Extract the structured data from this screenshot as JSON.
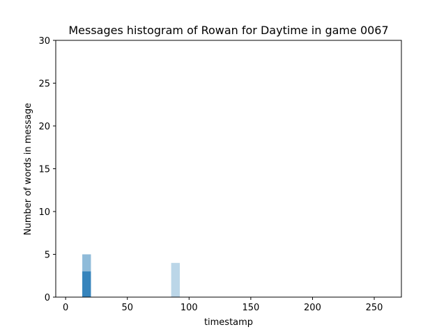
{
  "chart_data": {
    "type": "bar",
    "title": "Messages histogram of Rowan for Daytime in game 0067",
    "xlabel": "timestamp",
    "ylabel": "Number of words in message",
    "xlim": [
      -8,
      272
    ],
    "ylim": [
      0,
      30
    ],
    "xticks": [
      0,
      50,
      100,
      150,
      200,
      250
    ],
    "yticks": [
      0,
      5,
      10,
      15,
      20,
      25,
      30
    ],
    "grid": false,
    "bars": [
      {
        "x": 17,
        "width": 7,
        "value": 5,
        "color": "#1f77b4",
        "opacity": 0.5
      },
      {
        "x": 17,
        "width": 7,
        "value": 3,
        "color": "#1f77b4",
        "opacity": 0.8
      },
      {
        "x": 89,
        "width": 7,
        "value": 4,
        "color": "#1f77b4",
        "opacity": 0.3
      }
    ]
  }
}
